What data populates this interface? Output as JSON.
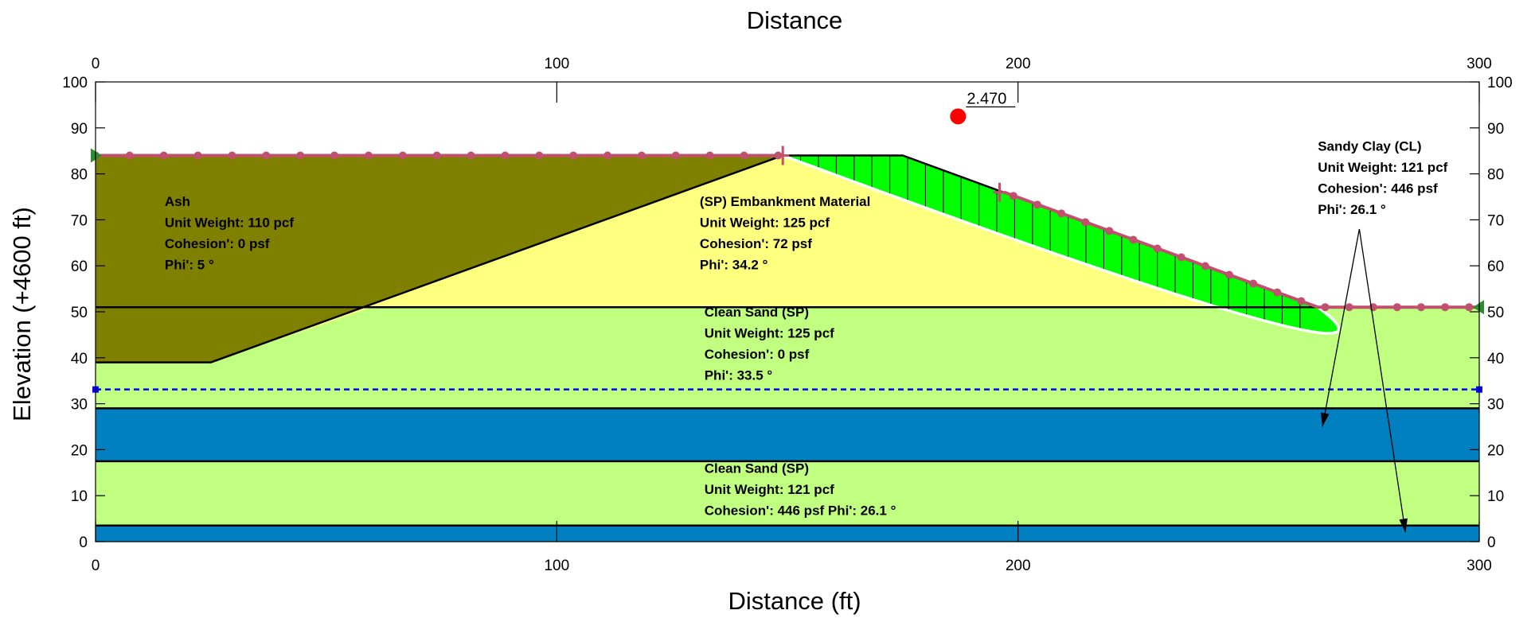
{
  "chart_data": {
    "type": "slope-stability-section",
    "title": "",
    "top_axis_title": "Distance",
    "xlabel": "Distance (ft)",
    "ylabel": "Elevation (+4600 ft)",
    "xlim": [
      0,
      300
    ],
    "ylim": [
      0,
      100
    ],
    "x_ticks": [
      0,
      100,
      200,
      300
    ],
    "y_ticks": [
      0,
      10,
      20,
      30,
      40,
      50,
      60,
      70,
      80,
      90,
      100
    ],
    "factor_of_safety": "2.470",
    "slip_center": [
      187,
      92.5
    ],
    "colors": {
      "ash": "#808000",
      "embankment": "#ffff80",
      "clean_sand": "#c0ff80",
      "dark_layer": "#0080c0",
      "slip_mass": "#00ff00",
      "surface": "#c0506e",
      "water": "#0000ff",
      "marker": "#ff0000",
      "edge": "#2e8b2e"
    },
    "regions": [
      {
        "name": "dark-layer-bottom",
        "color": "dark_layer",
        "points": [
          [
            0,
            0
          ],
          [
            300,
            0
          ],
          [
            300,
            3.5
          ],
          [
            0,
            3.5
          ]
        ]
      },
      {
        "name": "clean-sand-lower",
        "color": "clean_sand",
        "points": [
          [
            0,
            3.5
          ],
          [
            300,
            3.5
          ],
          [
            300,
            17.5
          ],
          [
            0,
            17.5
          ]
        ]
      },
      {
        "name": "dark-layer-middle",
        "color": "dark_layer",
        "points": [
          [
            0,
            17.5
          ],
          [
            300,
            17.5
          ],
          [
            300,
            29
          ],
          [
            0,
            29
          ]
        ]
      },
      {
        "name": "clean-sand-upper",
        "color": "clean_sand",
        "points": [
          [
            0,
            29
          ],
          [
            300,
            29
          ],
          [
            300,
            51
          ],
          [
            0,
            51
          ]
        ]
      },
      {
        "name": "embankment",
        "color": "embankment",
        "points": [
          [
            0,
            39
          ],
          [
            25,
            39
          ],
          [
            60,
            51
          ],
          [
            300,
            51
          ],
          [
            265,
            51
          ],
          [
            175,
            84
          ],
          [
            150,
            84
          ]
        ]
      },
      {
        "name": "ash",
        "color": "ash",
        "points": [
          [
            0,
            39
          ],
          [
            25,
            39
          ],
          [
            149,
            84
          ],
          [
            0,
            84
          ]
        ]
      }
    ],
    "ground_surface": [
      [
        0,
        84
      ],
      [
        175,
        84
      ],
      [
        265,
        51
      ],
      [
        300,
        51
      ]
    ],
    "boundary_lines": [
      [
        [
          0,
          39
        ],
        [
          25,
          39
        ],
        [
          149,
          84
        ]
      ],
      [
        [
          0,
          51
        ],
        [
          300,
          51
        ]
      ],
      [
        [
          0,
          29
        ],
        [
          300,
          29
        ]
      ],
      [
        [
          0,
          17.5
        ],
        [
          300,
          17.5
        ]
      ],
      [
        [
          0,
          3.5
        ],
        [
          300,
          3.5
        ]
      ]
    ],
    "slip_surface": {
      "entry": [
        149,
        84
      ],
      "exit": [
        265,
        51
      ],
      "bottom": [
        250,
        49
      ]
    },
    "piezometric_line": {
      "elevation": 33.1
    },
    "material_labels": [
      {
        "lines": [
          "Ash",
          "Unit Weight: 110 pcf",
          "Cohesion': 0 psf",
          "Phi': 5 °"
        ],
        "at": [
          15,
          73
        ]
      },
      {
        "lines": [
          "(SP) Embankment Material",
          "Unit Weight: 125 pcf",
          "Cohesion': 72 psf",
          "Phi': 34.2 °"
        ],
        "at": [
          131,
          73
        ]
      },
      {
        "lines": [
          "Clean Sand (SP)",
          "Unit Weight: 125 pcf",
          "Cohesion': 0 psf",
          "Phi': 33.5 °"
        ],
        "at": [
          132,
          49
        ]
      },
      {
        "lines": [
          "Clean Sand (SP)",
          "Unit Weight: 121 pcf",
          "Cohesion': 446 psf Phi': 26.1 °"
        ],
        "at": [
          132,
          15
        ]
      },
      {
        "lines": [
          "Sandy Clay (CL)",
          "Unit Weight: 121 pcf",
          "Cohesion': 446 psf",
          "Phi': 26.1 °"
        ],
        "at": [
          265,
          85
        ]
      }
    ],
    "leader_lines": [
      {
        "from": [
          274,
          68
        ],
        "to": [
          266,
          25
        ]
      },
      {
        "from": [
          274,
          68
        ],
        "to": [
          284,
          2
        ]
      }
    ]
  }
}
